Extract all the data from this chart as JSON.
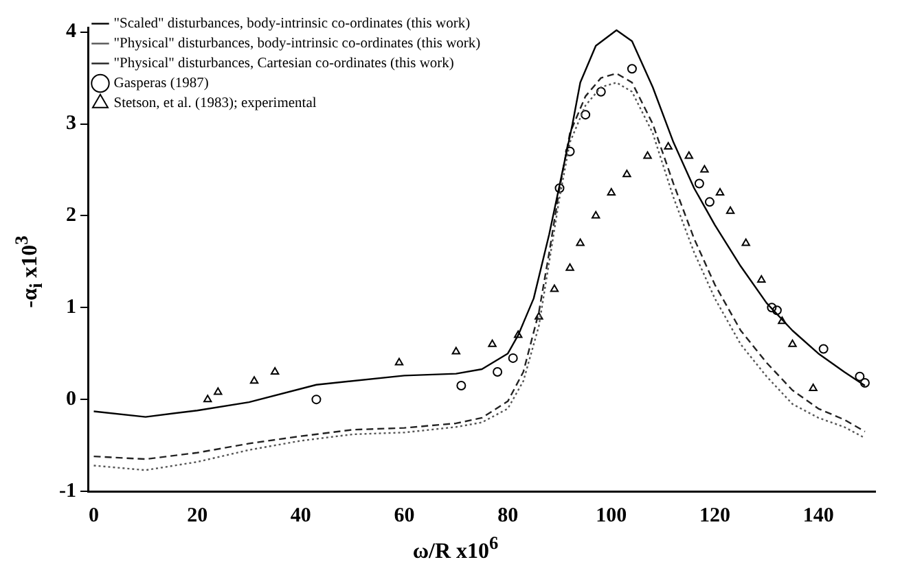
{
  "chart_data": {
    "type": "line",
    "xlabel": "ω/R x10$^{6}$",
    "ylabel": "-α$_{i}$ x10$^{3}$",
    "xlim": [
      -1,
      151
    ],
    "xticks": [
      0,
      20,
      40,
      60,
      80,
      100,
      120,
      140
    ],
    "ylim": [
      -1,
      4.05
    ],
    "yticks": [
      -1,
      0,
      1,
      2,
      3,
      4
    ],
    "grid": false,
    "legend": "top left",
    "series": [
      {
        "name": "\"Scaled\" disturbances, body-intrinsic co-ordinates (this work)",
        "line_style": "solid",
        "color": "#000000",
        "x": [
          0,
          10,
          20,
          30,
          43,
          60,
          70,
          75,
          80,
          82,
          85,
          88,
          91,
          92.5,
          94,
          97,
          101,
          104,
          108,
          112,
          116,
          120,
          125,
          130,
          135,
          140,
          145,
          149
        ],
        "values": [
          -0.13,
          -0.19,
          -0.12,
          -0.03,
          0.16,
          0.26,
          0.28,
          0.33,
          0.5,
          0.7,
          1.1,
          1.8,
          2.6,
          3.0,
          3.45,
          3.85,
          4.02,
          3.9,
          3.4,
          2.8,
          2.3,
          1.9,
          1.45,
          1.05,
          0.75,
          0.5,
          0.3,
          0.15
        ]
      },
      {
        "name": "\"Physical\" disturbances, body-intrinsic co-ordinates (this work)",
        "line_style": "dotted",
        "color": "#555555",
        "x": [
          0,
          10,
          20,
          30,
          40,
          50,
          60,
          70,
          75,
          80,
          83,
          86,
          88,
          90,
          92,
          95,
          98,
          101,
          104,
          108,
          112,
          116,
          120,
          125,
          130,
          135,
          140,
          145,
          149
        ],
        "values": [
          -0.72,
          -0.77,
          -0.68,
          -0.55,
          -0.45,
          -0.38,
          -0.36,
          -0.3,
          -0.25,
          -0.1,
          0.2,
          0.8,
          1.5,
          2.2,
          2.8,
          3.2,
          3.4,
          3.45,
          3.35,
          2.9,
          2.2,
          1.6,
          1.1,
          0.6,
          0.25,
          -0.05,
          -0.2,
          -0.3,
          -0.42
        ]
      },
      {
        "name": "\"Physical\" disturbances, Cartesian co-ordinates (this work)",
        "line_style": "dashed",
        "color": "#222222",
        "x": [
          0,
          10,
          20,
          30,
          40,
          50,
          60,
          70,
          75,
          80,
          83,
          86,
          88,
          90,
          92,
          95,
          98,
          101,
          104,
          108,
          112,
          116,
          120,
          125,
          130,
          135,
          140,
          145,
          149
        ],
        "values": [
          -0.62,
          -0.65,
          -0.58,
          -0.48,
          -0.4,
          -0.33,
          -0.31,
          -0.26,
          -0.2,
          -0.02,
          0.3,
          0.95,
          1.6,
          2.3,
          2.9,
          3.3,
          3.5,
          3.55,
          3.45,
          3.0,
          2.35,
          1.75,
          1.25,
          0.75,
          0.4,
          0.1,
          -0.1,
          -0.22,
          -0.35
        ]
      },
      {
        "name": "Gasperas (1987)",
        "type": "scatter",
        "marker": "circle",
        "color": "#000000",
        "x": [
          43,
          71,
          78,
          81,
          90,
          92,
          95,
          98,
          104,
          117,
          119,
          131,
          132,
          141,
          148,
          149
        ],
        "values": [
          0.0,
          0.15,
          0.3,
          0.45,
          2.3,
          2.7,
          3.1,
          3.35,
          3.6,
          2.35,
          2.15,
          1.0,
          0.97,
          0.55,
          0.25,
          0.18
        ]
      },
      {
        "name": "Stetson, et al. (1983); experimental",
        "type": "scatter",
        "marker": "triangle",
        "color": "#000000",
        "x": [
          22,
          24,
          31,
          35,
          59,
          70,
          77,
          82,
          86,
          89,
          92,
          94,
          97,
          100,
          103,
          107,
          111,
          115,
          118,
          121,
          123,
          126,
          129,
          133,
          135,
          139
        ],
        "values": [
          0,
          0.08,
          0.2,
          0.3,
          0.4,
          0.52,
          0.6,
          0.7,
          0.9,
          1.2,
          1.43,
          1.7,
          2.0,
          2.25,
          2.45,
          2.65,
          2.75,
          2.65,
          2.5,
          2.25,
          2.05,
          1.7,
          1.3,
          0.85,
          0.6,
          0.12
        ]
      }
    ]
  }
}
